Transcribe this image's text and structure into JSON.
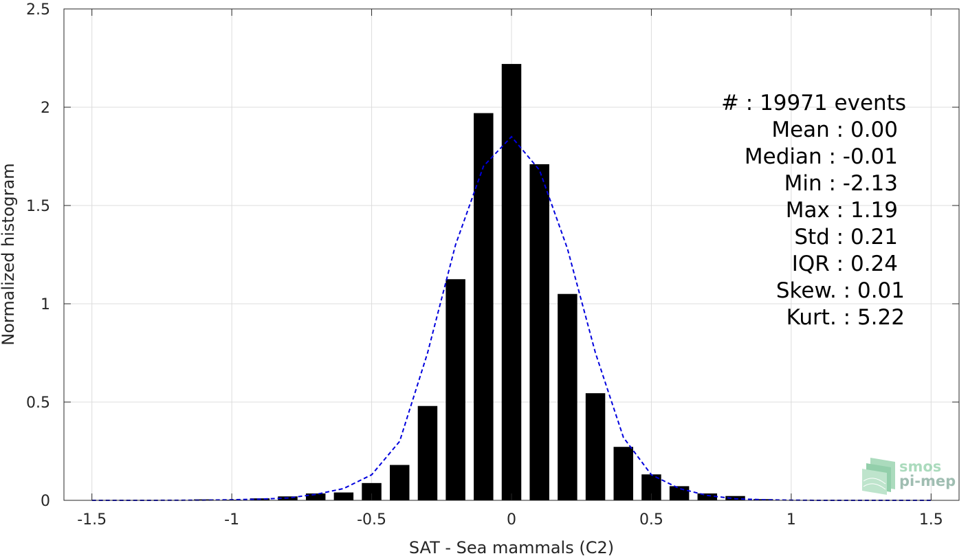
{
  "chart_data": {
    "type": "bar",
    "xlabel": "SAT - Sea mammals (C2)",
    "ylabel": "Normalized histogram",
    "xlim": [
      -1.6,
      1.6
    ],
    "ylim": [
      0,
      2.5
    ],
    "x_ticks": [
      -1.5,
      -1,
      -0.5,
      0,
      0.5,
      1,
      1.5
    ],
    "x_tick_labels": [
      "-1.5",
      "-1",
      "-0.5",
      "0",
      "0.5",
      "1",
      "1.5"
    ],
    "y_ticks": [
      0,
      0.5,
      1,
      1.5,
      2,
      2.5
    ],
    "y_tick_labels": [
      "0",
      "0.5",
      "1",
      "1.5",
      "2",
      "2.5"
    ],
    "grid": true,
    "bar_width": 0.07,
    "bars": {
      "x": [
        -1.1,
        -1.0,
        -0.9,
        -0.8,
        -0.7,
        -0.6,
        -0.5,
        -0.4,
        -0.3,
        -0.2,
        -0.1,
        0.0,
        0.1,
        0.2,
        0.3,
        0.4,
        0.5,
        0.6,
        0.7,
        0.8,
        0.9
      ],
      "values": [
        0.005,
        0.003,
        0.01,
        0.02,
        0.035,
        0.04,
        0.088,
        0.18,
        0.48,
        1.125,
        1.97,
        2.22,
        1.71,
        1.05,
        0.545,
        0.272,
        0.132,
        0.072,
        0.035,
        0.022,
        0.006
      ],
      "color": "#000000"
    },
    "fit_curve": {
      "style": "dashed",
      "color": "#0000dd",
      "x": [
        -1.5,
        -1.3,
        -1.1,
        -1.0,
        -0.9,
        -0.8,
        -0.7,
        -0.6,
        -0.5,
        -0.4,
        -0.3,
        -0.2,
        -0.1,
        0.0,
        0.1,
        0.2,
        0.3,
        0.4,
        0.5,
        0.6,
        0.7,
        0.8,
        0.9,
        1.0,
        1.1,
        1.3,
        1.5
      ],
      "y": [
        0.0,
        0.0,
        0.001,
        0.003,
        0.006,
        0.012,
        0.03,
        0.06,
        0.13,
        0.3,
        0.75,
        1.3,
        1.7,
        1.85,
        1.68,
        1.28,
        0.75,
        0.32,
        0.13,
        0.06,
        0.025,
        0.008,
        0.003,
        0.001,
        0.0,
        0.0,
        0.0
      ]
    },
    "stats": [
      {
        "text": "#  : 19971 events",
        "anchor": "1318"
      },
      {
        "text": "Mean : 0.00",
        "anchor": "1306"
      },
      {
        "text": "Median : -0.01",
        "anchor": "1306"
      },
      {
        "text": "Min : -2.13",
        "anchor": "1306"
      },
      {
        "text": "Max : 1.19",
        "anchor": "1306"
      },
      {
        "text": "Std : 0.21",
        "anchor": "1306"
      },
      {
        "text": "IQR : 0.24",
        "anchor": "1306"
      },
      {
        "text": "Skew. : 0.01",
        "anchor": "1316"
      },
      {
        "text": "Kurt. : 5.22",
        "anchor": "1316"
      }
    ]
  },
  "logo": {
    "line1": "smos",
    "line2": "pi-mep"
  }
}
